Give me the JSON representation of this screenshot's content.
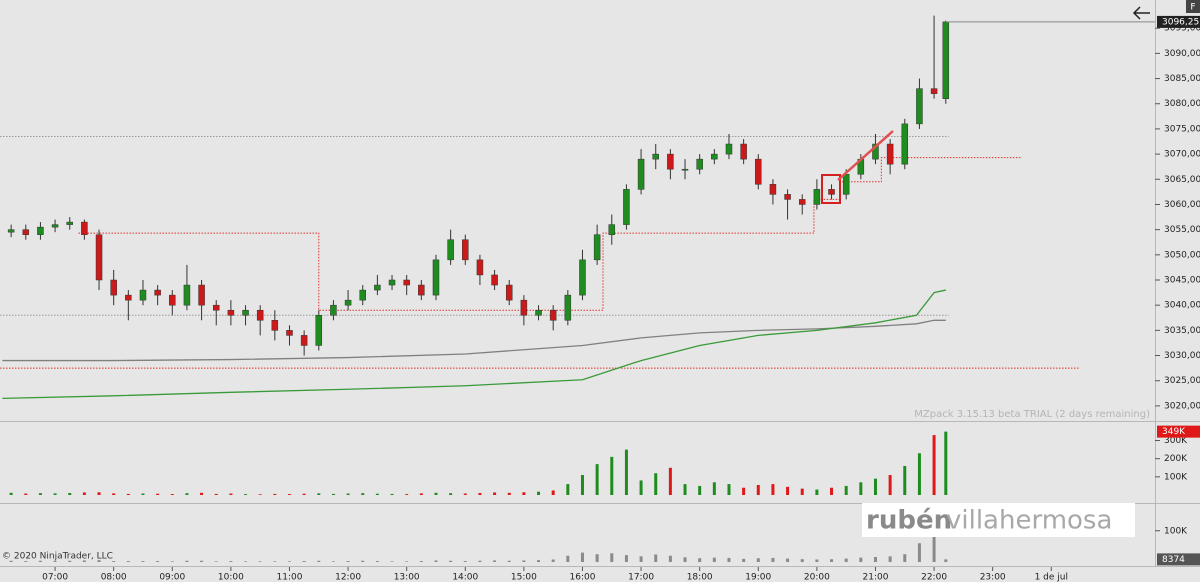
{
  "chart_data": [
    {
      "type": "candlestick",
      "x": [
        6.25,
        6.5,
        6.75,
        7,
        7.25,
        7.5,
        7.75,
        8,
        8.25,
        8.5,
        8.75,
        9,
        9.25,
        9.5,
        9.75,
        10,
        10.25,
        10.5,
        10.75,
        11,
        11.25,
        11.5,
        11.75,
        12,
        12.25,
        12.5,
        12.75,
        13,
        13.25,
        13.5,
        13.75,
        14,
        14.25,
        14.5,
        14.75,
        15,
        15.25,
        15.5,
        15.75,
        16,
        16.25,
        16.5,
        16.75,
        17,
        17.25,
        17.5,
        17.75,
        18,
        18.25,
        18.5,
        18.75,
        19,
        19.25,
        19.5,
        19.75,
        20,
        20.25,
        20.5,
        20.75,
        21,
        21.25,
        21.5,
        21.75,
        22,
        22.2
      ],
      "open": [
        3054.5,
        3055,
        3054,
        3055.5,
        3056,
        3056.5,
        3054,
        3045,
        3042,
        3041,
        3043,
        3042,
        3040,
        3044,
        3040,
        3039,
        3038,
        3039,
        3037,
        3035,
        3034,
        3032,
        3038,
        3040,
        3041,
        3043,
        3044,
        3045,
        3044,
        3042,
        3049,
        3053,
        3049,
        3046,
        3044,
        3041,
        3038,
        3039,
        3037,
        3042,
        3049,
        3054,
        3056,
        3063,
        3069,
        3070,
        3067,
        3067,
        3069,
        3070,
        3072,
        3069,
        3064,
        3062,
        3061,
        3060,
        3063,
        3062,
        3066,
        3069,
        3072,
        3068,
        3076,
        3083,
        3081
      ],
      "high": [
        3056,
        3056,
        3056.5,
        3057,
        3057.5,
        3057,
        3055,
        3047,
        3043,
        3045,
        3044,
        3043,
        3048,
        3045,
        3041,
        3041,
        3040,
        3040,
        3039,
        3036,
        3035,
        3039,
        3041,
        3043,
        3044,
        3046,
        3046,
        3046,
        3045,
        3050,
        3055,
        3054,
        3050,
        3047,
        3045,
        3042,
        3040,
        3040,
        3043,
        3051,
        3056,
        3058,
        3064,
        3071,
        3072,
        3071,
        3069,
        3070,
        3071,
        3074,
        3073,
        3070,
        3065,
        3063,
        3062,
        3065,
        3064,
        3067,
        3070,
        3074,
        3073,
        3077,
        3085,
        3097.5,
        3096.5
      ],
      "low": [
        3053.5,
        3053,
        3053,
        3054.5,
        3055,
        3053,
        3043,
        3040,
        3037,
        3040,
        3040,
        3038,
        3039,
        3037,
        3036,
        3036,
        3036,
        3034,
        3033,
        3032,
        3030,
        3031,
        3037,
        3039,
        3040,
        3042,
        3043,
        3042,
        3041,
        3041,
        3048,
        3048,
        3044,
        3043,
        3040,
        3036,
        3037,
        3035,
        3036,
        3041,
        3048,
        3052,
        3055,
        3062,
        3067,
        3065,
        3065,
        3066,
        3068,
        3069,
        3068,
        3063,
        3060,
        3057,
        3058,
        3059,
        3061,
        3061,
        3065,
        3068,
        3066,
        3067,
        3075,
        3081,
        3080
      ],
      "close": [
        3055,
        3054,
        3055.5,
        3056,
        3056.5,
        3054,
        3045,
        3042,
        3041,
        3043,
        3042,
        3040,
        3044,
        3040,
        3039,
        3038,
        3039,
        3037,
        3035,
        3034,
        3032,
        3038,
        3040,
        3041,
        3043,
        3044,
        3045,
        3044,
        3042,
        3049,
        3053,
        3049,
        3046,
        3044,
        3041,
        3038,
        3039,
        3037,
        3042,
        3049,
        3054,
        3056,
        3063,
        3069,
        3070,
        3067,
        3067,
        3069,
        3070,
        3072,
        3069,
        3064,
        3062,
        3061,
        3060,
        3063,
        3062,
        3066,
        3069,
        3072,
        3068,
        3076,
        3083,
        3082,
        3096.25
      ],
      "up_color": "#1e8c1e",
      "down_color": "#cc1a1a",
      "xlim": [
        6.06,
        25.77
      ],
      "ylim": [
        3017.2,
        3100.6
      ],
      "xticks": [
        {
          "value": 7,
          "label": "07:00"
        },
        {
          "value": 8,
          "label": "08:00"
        },
        {
          "value": 9,
          "label": "09:00"
        },
        {
          "value": 10,
          "label": "10:00"
        },
        {
          "value": 11,
          "label": "11:00"
        },
        {
          "value": 12,
          "label": "12:00"
        },
        {
          "value": 13,
          "label": "13:00"
        },
        {
          "value": 14,
          "label": "14:00"
        },
        {
          "value": 15,
          "label": "15:00"
        },
        {
          "value": 16,
          "label": "16:00"
        },
        {
          "value": 17,
          "label": "17:00"
        },
        {
          "value": 18,
          "label": "18:00"
        },
        {
          "value": 19,
          "label": "19:00"
        },
        {
          "value": 20,
          "label": "20:00"
        },
        {
          "value": 21,
          "label": "21:00"
        },
        {
          "value": 22,
          "label": "22:00"
        },
        {
          "value": 23,
          "label": "23:00"
        },
        {
          "value": 24,
          "label": "1 de jul"
        }
      ],
      "yticks": [
        {
          "value": 3020,
          "label": "3020,00"
        },
        {
          "value": 3025,
          "label": "3025,00"
        },
        {
          "value": 3030,
          "label": "3030,00"
        },
        {
          "value": 3035,
          "label": "3035,00"
        },
        {
          "value": 3040,
          "label": "3040,00"
        },
        {
          "value": 3045,
          "label": "3045,00"
        },
        {
          "value": 3050,
          "label": "3050,00"
        },
        {
          "value": 3055,
          "label": "3055,00"
        },
        {
          "value": 3060,
          "label": "3060,00"
        },
        {
          "value": 3065,
          "label": "3065,00"
        },
        {
          "value": 3070,
          "label": "3070,00"
        },
        {
          "value": 3075,
          "label": "3075,00"
        },
        {
          "value": 3080,
          "label": "3080,00"
        },
        {
          "value": 3085,
          "label": "3085,00"
        },
        {
          "value": 3090,
          "label": "3090,00"
        },
        {
          "value": 3095,
          "label": "3095,00"
        }
      ],
      "last_price": {
        "value": 3096.25,
        "label": "3096,25"
      },
      "indicators": [
        {
          "color": "#808080",
          "x": [
            6.1,
            8,
            10,
            12,
            14,
            16,
            17,
            18,
            19,
            20,
            21,
            21.7,
            22,
            22.2
          ],
          "values": [
            3029,
            3029,
            3029.2,
            3029.6,
            3030.3,
            3032,
            3033.5,
            3034.5,
            3035,
            3035.3,
            3035.8,
            3036.3,
            3037,
            3037
          ]
        },
        {
          "color": "#3a9a3a",
          "x": [
            6.1,
            8,
            10,
            12,
            14,
            16,
            17,
            18,
            19,
            20,
            21,
            21.7,
            22,
            22.2
          ],
          "values": [
            3021.5,
            3022,
            3022.7,
            3023.3,
            3024,
            3025.2,
            3029,
            3032,
            3034,
            3035,
            3036.5,
            3038,
            3042.5,
            3043
          ]
        }
      ],
      "step_line": {
        "color": "#e0302a",
        "x": [
          7.4,
          11.5,
          16.35,
          19.95,
          20.4,
          21.1,
          23.5
        ],
        "values": [
          3054.3,
          3039,
          3054.3,
          3061,
          3064.5,
          3069.3,
          3069.3
        ]
      },
      "levels": [
        {
          "value": 3073.5,
          "color": "#999999"
        },
        {
          "value": 3038,
          "color": "#999999"
        },
        {
          "value": 3027.5,
          "color": "#e0302a"
        }
      ]
    },
    {
      "type": "bar",
      "values": [
        12000,
        8000,
        10000,
        9000,
        11000,
        14000,
        15000,
        9000,
        6000,
        8000,
        7000,
        5000,
        10000,
        12000,
        6000,
        8000,
        5000,
        4000,
        6000,
        5000,
        7000,
        9000,
        6000,
        8000,
        10000,
        7000,
        6000,
        5000,
        9000,
        12000,
        10000,
        8000,
        11000,
        14000,
        12000,
        15000,
        18000,
        25000,
        60000,
        110000,
        170000,
        210000,
        250000,
        80000,
        120000,
        150000,
        60000,
        50000,
        70000,
        60000,
        40000,
        55000,
        60000,
        45000,
        35000,
        30000,
        40000,
        50000,
        70000,
        90000,
        110000,
        160000,
        230000,
        330000,
        349000
      ],
      "up_color": "#1e8c1e",
      "down_color": "#e01818",
      "ylim": [
        0,
        380000
      ],
      "yticks": [
        {
          "value": 100000,
          "label": "100K"
        },
        {
          "value": 200000,
          "label": "200K"
        },
        {
          "value": 300000,
          "label": "300K"
        }
      ],
      "last_value": {
        "value": 349000,
        "label": "349K"
      }
    },
    {
      "type": "bar",
      "values": [
        4000,
        3000,
        4000,
        3000,
        4000,
        5000,
        6000,
        3000,
        3000,
        3000,
        3000,
        2000,
        4000,
        4000,
        2000,
        3000,
        2000,
        2000,
        2000,
        2000,
        3000,
        4000,
        2000,
        3000,
        4000,
        3000,
        2000,
        2000,
        3000,
        5000,
        4000,
        3000,
        4000,
        5000,
        4000,
        5000,
        6000,
        8000,
        20000,
        30000,
        25000,
        28000,
        22000,
        18000,
        24000,
        20000,
        15000,
        12000,
        14000,
        13000,
        10000,
        12000,
        13000,
        11000,
        9000,
        8000,
        9000,
        11000,
        14000,
        16000,
        18000,
        25000,
        60000,
        95000,
        8374
      ],
      "color": "#8a8a8a",
      "ylim": [
        0,
        160000
      ],
      "yticks": [
        {
          "value": 100000,
          "label": "100K"
        }
      ],
      "last_value": 8374
    }
  ],
  "watermark": "MZpack 3.15.13 beta TRIAL  (2 days remaining)",
  "copyright": "© 2020 NinjaTrader, LLC",
  "logo": {
    "first": "rubén",
    "second": "villahermosa"
  },
  "corner_button": "F"
}
